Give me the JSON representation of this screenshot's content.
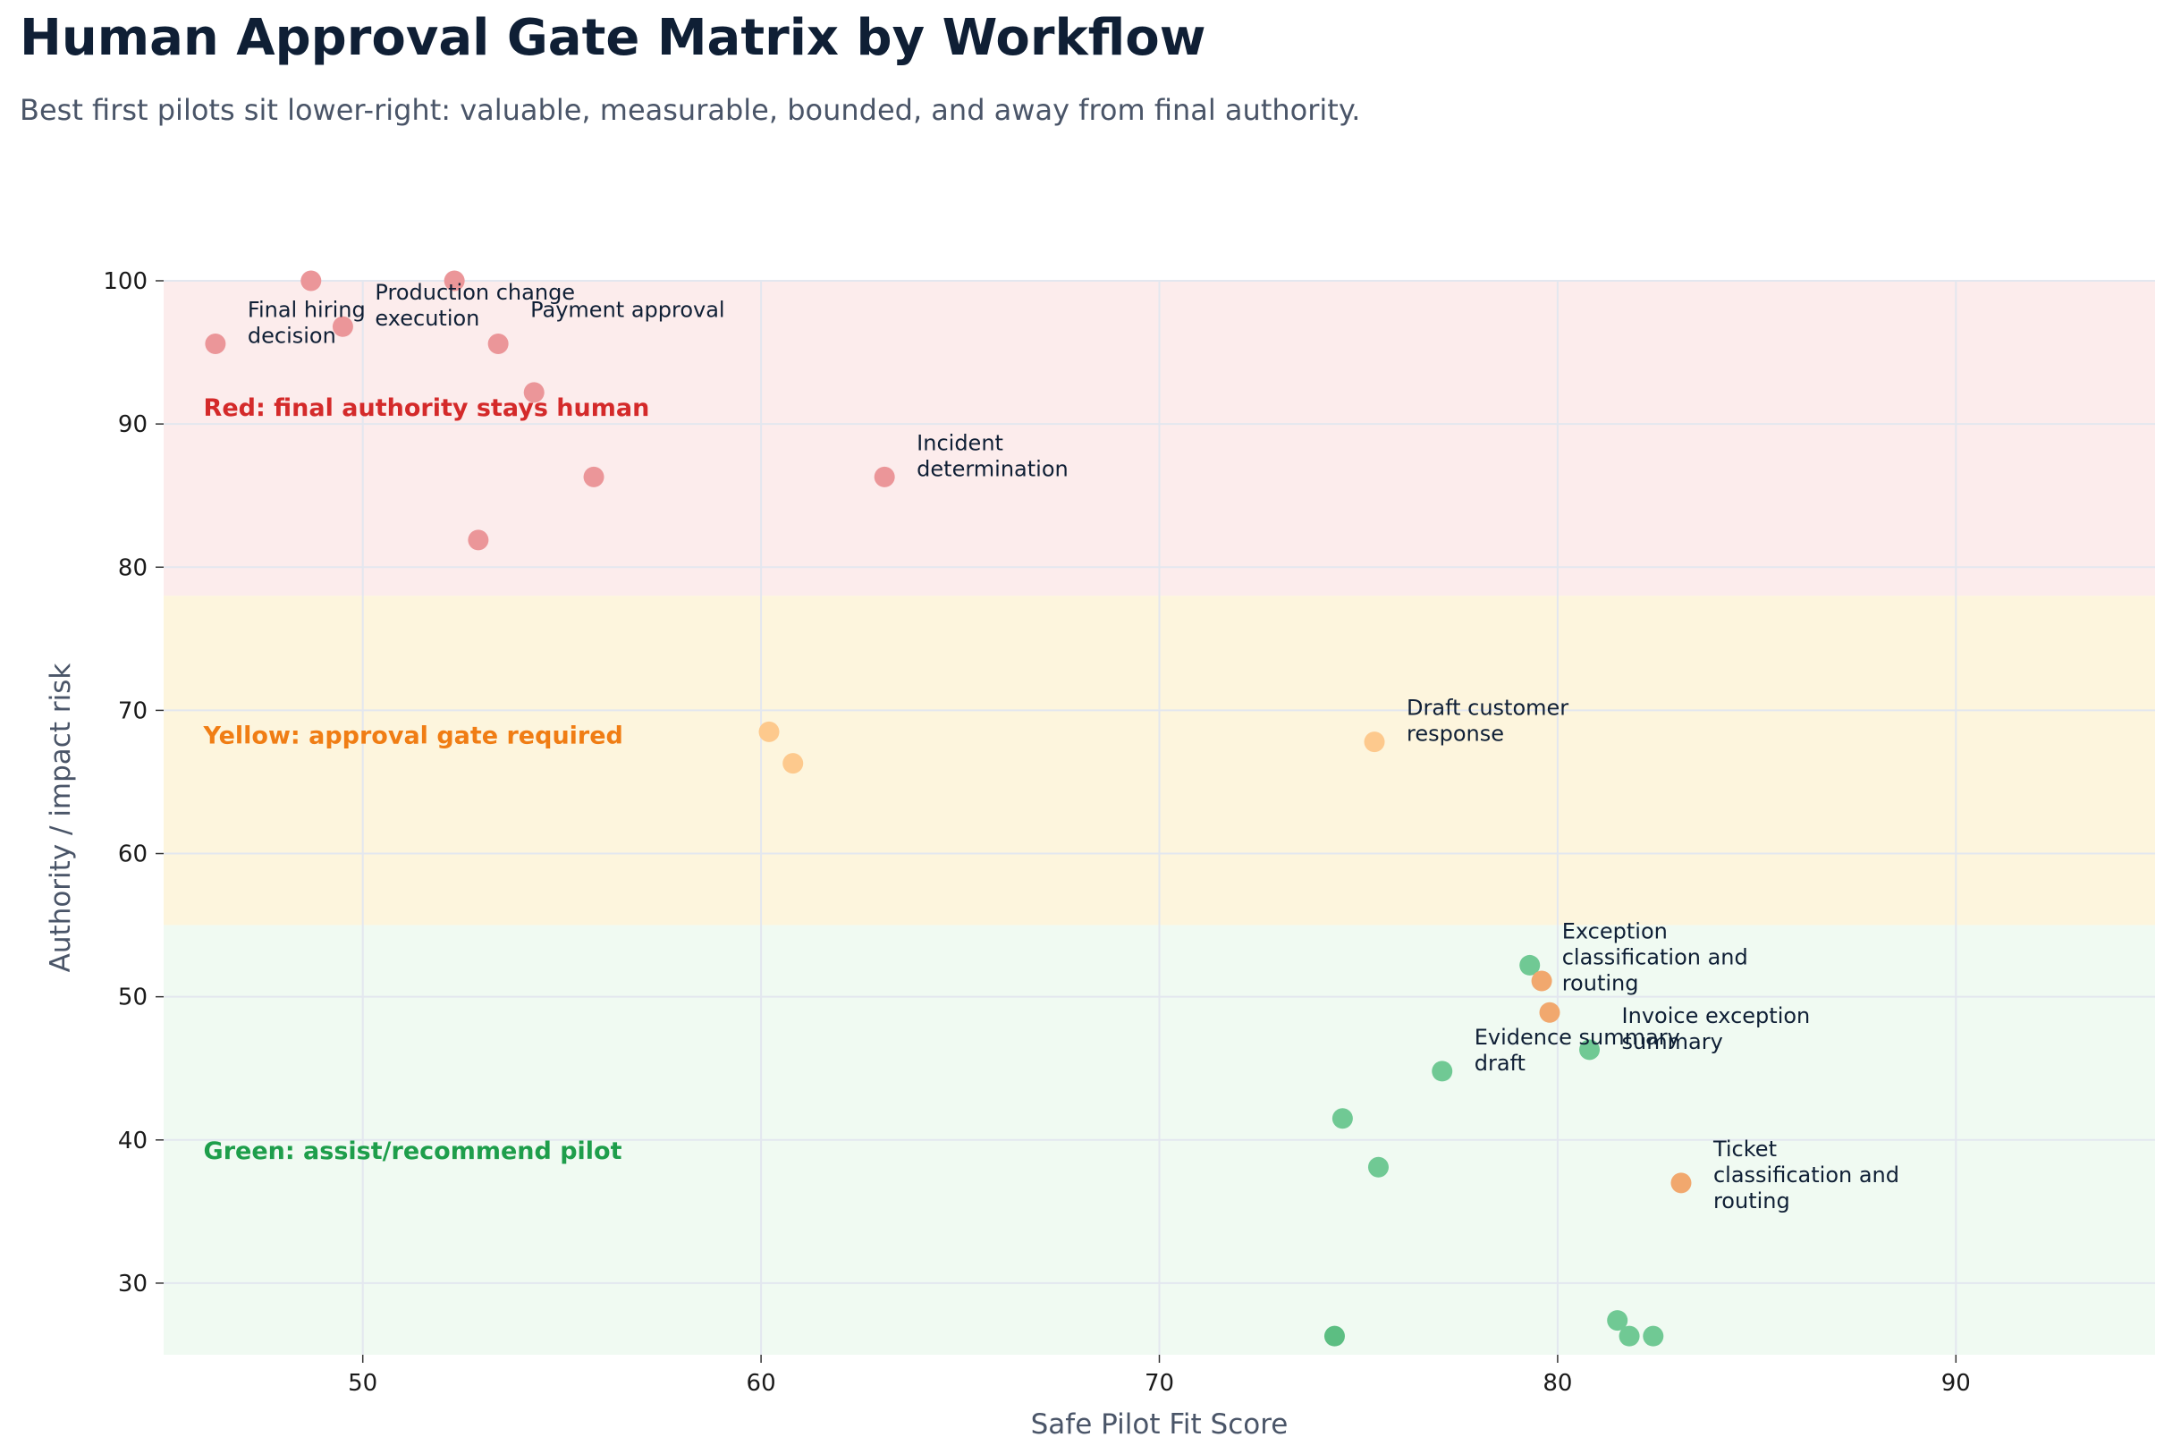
{
  "title": "Human Approval Gate Matrix by Workflow",
  "subtitle": "Best first pilots sit lower-right: valuable, measurable, bounded, and away from final authority.",
  "chart_data": {
    "type": "scatter",
    "xlabel": "Safe Pilot Fit Score",
    "ylabel": "Authority / impact risk",
    "xlim": [
      45,
      95
    ],
    "ylim": [
      25,
      100
    ],
    "x_ticks": [
      50,
      60,
      70,
      80,
      90
    ],
    "y_ticks": [
      30,
      40,
      50,
      60,
      70,
      80,
      90,
      100
    ],
    "grid": true,
    "zones": [
      {
        "label": "Red: final authority stays human",
        "y_range": [
          78,
          100
        ],
        "fill": "#fcecec",
        "text_color": "#d42a2a",
        "label_y": 91.2
      },
      {
        "label": "Yellow: approval gate required",
        "y_range": [
          55,
          78
        ],
        "fill": "#fdf5dd",
        "text_color": "#f07d14",
        "label_y": 68.3
      },
      {
        "label": "Green: assist/recommend pilot",
        "y_range": [
          25,
          55
        ],
        "fill": "#f0faf2",
        "text_color": "#1e9e4b",
        "label_y": 39.3
      }
    ],
    "colors": {
      "red": "#eb9699",
      "yellow": "#fdc98d",
      "orange": "#f1a86e",
      "green": "#70c994",
      "green_dark": "#5cbe82"
    },
    "points": [
      {
        "x": 46.3,
        "y": 95.6,
        "color": "red",
        "label": [
          "Final hiring",
          "decision"
        ]
      },
      {
        "x": 48.7,
        "y": 100,
        "color": "red",
        "label": []
      },
      {
        "x": 49.5,
        "y": 96.8,
        "color": "red",
        "label": [
          "Production change",
          "execution"
        ]
      },
      {
        "x": 52.3,
        "y": 100,
        "color": "red",
        "label": []
      },
      {
        "x": 53.4,
        "y": 95.6,
        "color": "red",
        "label": [
          "Payment approval"
        ]
      },
      {
        "x": 54.3,
        "y": 92.2,
        "color": "red",
        "label": []
      },
      {
        "x": 55.8,
        "y": 86.3,
        "color": "red",
        "label": []
      },
      {
        "x": 52.9,
        "y": 81.9,
        "color": "red",
        "label": []
      },
      {
        "x": 63.1,
        "y": 86.3,
        "color": "red",
        "label": [
          "Incident",
          "determination"
        ]
      },
      {
        "x": 60.2,
        "y": 68.5,
        "color": "yellow",
        "label": []
      },
      {
        "x": 60.8,
        "y": 66.3,
        "color": "yellow",
        "label": []
      },
      {
        "x": 75.4,
        "y": 67.8,
        "color": "yellow",
        "label": [
          "Draft customer",
          "response"
        ]
      },
      {
        "x": 79.3,
        "y": 52.2,
        "color": "green",
        "label": [
          "Exception",
          "classification and",
          "routing"
        ]
      },
      {
        "x": 79.6,
        "y": 51.1,
        "color": "orange",
        "label": []
      },
      {
        "x": 79.8,
        "y": 48.9,
        "color": "orange",
        "label": []
      },
      {
        "x": 77.1,
        "y": 44.8,
        "color": "green",
        "label": [
          "Evidence summary",
          "draft"
        ]
      },
      {
        "x": 80.8,
        "y": 46.3,
        "color": "green",
        "label": [
          "Invoice exception",
          "summary"
        ]
      },
      {
        "x": 74.6,
        "y": 41.5,
        "color": "green",
        "label": []
      },
      {
        "x": 75.5,
        "y": 38.1,
        "color": "green",
        "label": []
      },
      {
        "x": 83.1,
        "y": 37.0,
        "color": "orange",
        "label": [
          "Ticket",
          "classification and",
          "routing"
        ]
      },
      {
        "x": 74.4,
        "y": 26.3,
        "color": "green_dark",
        "label": []
      },
      {
        "x": 81.5,
        "y": 27.4,
        "color": "green",
        "label": []
      },
      {
        "x": 81.8,
        "y": 26.3,
        "color": "green",
        "label": []
      },
      {
        "x": 82.4,
        "y": 26.3,
        "color": "green",
        "label": []
      }
    ]
  }
}
